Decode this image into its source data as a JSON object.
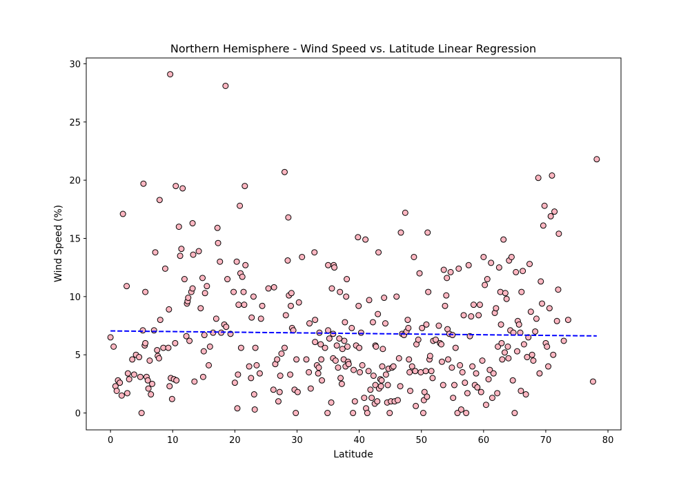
{
  "chart_data": {
    "type": "scatter",
    "title": "Northern Hemisphere - Wind Speed vs. Latitude Linear Regression",
    "xlabel": "Latitude",
    "ylabel": "Wind Speed (%)",
    "xlim": [
      -3.9,
      82.1
    ],
    "ylim": [
      -1.45,
      30.5
    ],
    "xticks": [
      0,
      10,
      20,
      30,
      40,
      50,
      60,
      70,
      80
    ],
    "yticks": [
      0,
      5,
      10,
      15,
      20,
      25,
      30
    ],
    "grid": false,
    "marker_color": "#ffb6c1",
    "marker_edge": "#000000",
    "regression_color": "#0000ff",
    "regression": {
      "x": [
        0,
        78.2
      ],
      "y": [
        7.05,
        6.62
      ]
    },
    "points": [
      [
        0.0,
        6.5
      ],
      [
        0.5,
        5.7
      ],
      [
        0.8,
        2.3
      ],
      [
        1.0,
        1.9
      ],
      [
        1.2,
        2.8
      ],
      [
        1.5,
        2.6
      ],
      [
        1.8,
        1.5
      ],
      [
        2.0,
        17.1
      ],
      [
        2.6,
        10.9
      ],
      [
        2.7,
        1.7
      ],
      [
        2.8,
        3.4
      ],
      [
        3.0,
        2.9
      ],
      [
        3.5,
        4.6
      ],
      [
        3.8,
        3.3
      ],
      [
        4.1,
        5.0
      ],
      [
        4.6,
        4.8
      ],
      [
        4.8,
        3.1
      ],
      [
        5.0,
        0.0
      ],
      [
        5.2,
        7.1
      ],
      [
        5.3,
        19.7
      ],
      [
        5.5,
        5.8
      ],
      [
        5.6,
        6.0
      ],
      [
        5.6,
        10.4
      ],
      [
        5.8,
        3.1
      ],
      [
        6.0,
        2.8
      ],
      [
        6.1,
        2.1
      ],
      [
        6.3,
        4.5
      ],
      [
        6.5,
        1.6
      ],
      [
        6.7,
        2.5
      ],
      [
        7.0,
        7.1
      ],
      [
        7.2,
        13.8
      ],
      [
        7.5,
        5.4
      ],
      [
        7.6,
        4.9
      ],
      [
        7.8,
        4.7
      ],
      [
        7.9,
        18.3
      ],
      [
        8.0,
        8.0
      ],
      [
        8.5,
        5.6
      ],
      [
        8.8,
        12.4
      ],
      [
        9.3,
        5.6
      ],
      [
        9.4,
        8.9
      ],
      [
        9.5,
        2.3
      ],
      [
        9.6,
        29.1
      ],
      [
        9.7,
        3.0
      ],
      [
        9.9,
        1.2
      ],
      [
        10.2,
        2.9
      ],
      [
        10.4,
        6.0
      ],
      [
        10.5,
        19.5
      ],
      [
        10.6,
        2.8
      ],
      [
        11.0,
        16.0
      ],
      [
        11.2,
        13.5
      ],
      [
        11.4,
        14.1
      ],
      [
        11.6,
        19.3
      ],
      [
        11.9,
        11.5
      ],
      [
        12.2,
        6.6
      ],
      [
        12.3,
        9.4
      ],
      [
        12.4,
        9.6
      ],
      [
        12.5,
        9.9
      ],
      [
        12.7,
        6.2
      ],
      [
        13.0,
        10.4
      ],
      [
        13.2,
        10.7
      ],
      [
        13.2,
        16.3
      ],
      [
        13.3,
        13.6
      ],
      [
        13.5,
        2.7
      ],
      [
        14.2,
        13.9
      ],
      [
        14.5,
        9.0
      ],
      [
        14.8,
        11.6
      ],
      [
        14.9,
        3.1
      ],
      [
        15.0,
        5.3
      ],
      [
        15.1,
        6.7
      ],
      [
        15.2,
        10.3
      ],
      [
        15.5,
        10.9
      ],
      [
        15.8,
        4.1
      ],
      [
        16.0,
        5.7
      ],
      [
        16.5,
        6.9
      ],
      [
        17.0,
        8.1
      ],
      [
        17.2,
        15.9
      ],
      [
        17.3,
        14.6
      ],
      [
        17.6,
        13.0
      ],
      [
        17.8,
        6.9
      ],
      [
        18.3,
        7.6
      ],
      [
        18.5,
        28.1
      ],
      [
        18.6,
        7.4
      ],
      [
        18.8,
        11.5
      ],
      [
        19.3,
        6.8
      ],
      [
        19.8,
        10.4
      ],
      [
        20.0,
        2.6
      ],
      [
        20.3,
        13.0
      ],
      [
        20.4,
        0.4
      ],
      [
        20.5,
        3.3
      ],
      [
        20.6,
        9.3
      ],
      [
        20.8,
        17.8
      ],
      [
        20.9,
        12.0
      ],
      [
        21.0,
        5.6
      ],
      [
        21.2,
        11.7
      ],
      [
        21.4,
        10.4
      ],
      [
        21.5,
        9.3
      ],
      [
        21.6,
        19.5
      ],
      [
        21.7,
        12.7
      ],
      [
        22.3,
        4.0
      ],
      [
        22.6,
        3.0
      ],
      [
        22.7,
        8.2
      ],
      [
        23.0,
        10.0
      ],
      [
        23.1,
        1.6
      ],
      [
        23.2,
        0.3
      ],
      [
        23.3,
        5.6
      ],
      [
        23.5,
        4.1
      ],
      [
        24.0,
        3.4
      ],
      [
        24.2,
        8.1
      ],
      [
        24.4,
        9.2
      ],
      [
        25.4,
        10.7
      ],
      [
        26.2,
        2.0
      ],
      [
        26.3,
        10.8
      ],
      [
        26.5,
        4.2
      ],
      [
        26.8,
        4.6
      ],
      [
        27.0,
        1.0
      ],
      [
        27.2,
        1.8
      ],
      [
        27.3,
        3.2
      ],
      [
        27.5,
        5.1
      ],
      [
        28.0,
        5.6
      ],
      [
        28.2,
        8.4
      ],
      [
        28.0,
        20.7
      ],
      [
        28.5,
        13.1
      ],
      [
        28.6,
        16.8
      ],
      [
        28.7,
        10.1
      ],
      [
        28.9,
        3.3
      ],
      [
        29.0,
        9.2
      ],
      [
        29.1,
        10.3
      ],
      [
        29.2,
        7.3
      ],
      [
        29.4,
        7.1
      ],
      [
        29.6,
        2.0
      ],
      [
        29.8,
        0.0
      ],
      [
        29.9,
        4.6
      ],
      [
        30.1,
        1.8
      ],
      [
        30.3,
        9.5
      ],
      [
        30.8,
        13.4
      ],
      [
        31.5,
        4.6
      ],
      [
        31.9,
        3.5
      ],
      [
        32.2,
        2.1
      ],
      [
        32.0,
        7.7
      ],
      [
        32.9,
        6.1
      ],
      [
        32.8,
        13.8
      ],
      [
        32.9,
        8.0
      ],
      [
        33.2,
        4.1
      ],
      [
        33.4,
        3.4
      ],
      [
        33.5,
        3.9
      ],
      [
        33.6,
        6.9
      ],
      [
        33.8,
        5.9
      ],
      [
        33.9,
        4.6
      ],
      [
        34.0,
        2.8
      ],
      [
        34.5,
        5.6
      ],
      [
        34.9,
        0.0
      ],
      [
        35.0,
        7.1
      ],
      [
        35.0,
        12.7
      ],
      [
        35.2,
        6.4
      ],
      [
        35.5,
        0.9
      ],
      [
        35.6,
        10.7
      ],
      [
        35.8,
        6.8
      ],
      [
        35.8,
        4.7
      ],
      [
        35.9,
        12.7
      ],
      [
        36.0,
        12.5
      ],
      [
        36.2,
        4.5
      ],
      [
        36.4,
        5.8
      ],
      [
        36.6,
        3.9
      ],
      [
        36.8,
        6.4
      ],
      [
        36.9,
        10.4
      ],
      [
        37.0,
        3.0
      ],
      [
        37.2,
        2.5
      ],
      [
        37.3,
        5.5
      ],
      [
        37.5,
        4.6
      ],
      [
        37.6,
        6.2
      ],
      [
        37.7,
        7.8
      ],
      [
        37.8,
        4.0
      ],
      [
        37.9,
        10.0
      ],
      [
        38.0,
        11.5
      ],
      [
        38.1,
        5.7
      ],
      [
        38.2,
        4.4
      ],
      [
        38.3,
        4.2
      ],
      [
        38.8,
        7.3
      ],
      [
        39.0,
        0.0
      ],
      [
        39.1,
        3.7
      ],
      [
        39.3,
        1.0
      ],
      [
        39.5,
        5.8
      ],
      [
        39.8,
        15.1
      ],
      [
        39.9,
        9.2
      ],
      [
        40.0,
        5.6
      ],
      [
        40.1,
        3.5
      ],
      [
        40.3,
        6.9
      ],
      [
        40.5,
        4.1
      ],
      [
        40.8,
        1.3
      ],
      [
        41.0,
        14.9
      ],
      [
        41.1,
        0.4
      ],
      [
        41.3,
        0.0
      ],
      [
        41.5,
        3.6
      ],
      [
        41.6,
        9.7
      ],
      [
        41.8,
        2.0
      ],
      [
        42.0,
        1.3
      ],
      [
        42.2,
        7.8
      ],
      [
        42.3,
        3.2
      ],
      [
        42.5,
        0.8
      ],
      [
        42.6,
        2.4
      ],
      [
        42.6,
        5.8
      ],
      [
        42.7,
        5.7
      ],
      [
        42.9,
        1.0
      ],
      [
        43.0,
        8.5
      ],
      [
        43.1,
        13.8
      ],
      [
        43.2,
        2.1
      ],
      [
        43.4,
        2.9
      ],
      [
        43.5,
        2.3
      ],
      [
        43.6,
        2.8
      ],
      [
        43.7,
        4.0
      ],
      [
        43.8,
        5.5
      ],
      [
        44.0,
        9.9
      ],
      [
        44.2,
        7.7
      ],
      [
        44.3,
        3.3
      ],
      [
        44.5,
        0.9
      ],
      [
        44.6,
        2.4
      ],
      [
        44.7,
        3.8
      ],
      [
        44.9,
        0.0
      ],
      [
        45.1,
        1.0
      ],
      [
        45.3,
        3.9
      ],
      [
        45.5,
        4.0
      ],
      [
        45.7,
        1.0
      ],
      [
        46.0,
        10.0
      ],
      [
        46.2,
        1.1
      ],
      [
        46.4,
        4.7
      ],
      [
        46.6,
        2.3
      ],
      [
        46.7,
        15.5
      ],
      [
        46.9,
        6.8
      ],
      [
        47.2,
        6.7
      ],
      [
        47.4,
        17.2
      ],
      [
        47.6,
        7.0
      ],
      [
        47.8,
        8.0
      ],
      [
        47.9,
        7.3
      ],
      [
        48.0,
        4.6
      ],
      [
        48.1,
        3.5
      ],
      [
        48.2,
        1.9
      ],
      [
        48.5,
        4.0
      ],
      [
        48.8,
        13.4
      ],
      [
        49.0,
        3.6
      ],
      [
        49.1,
        0.6
      ],
      [
        49.2,
        5.9
      ],
      [
        49.5,
        6.3
      ],
      [
        49.7,
        12.0
      ],
      [
        49.9,
        3.5
      ],
      [
        50.1,
        7.3
      ],
      [
        50.3,
        0.0
      ],
      [
        50.4,
        1.1
      ],
      [
        50.5,
        1.8
      ],
      [
        50.7,
        3.6
      ],
      [
        50.8,
        7.6
      ],
      [
        50.9,
        1.4
      ],
      [
        51.0,
        15.5
      ],
      [
        51.1,
        10.4
      ],
      [
        51.3,
        4.6
      ],
      [
        51.4,
        4.9
      ],
      [
        51.6,
        3.6
      ],
      [
        51.8,
        3.0
      ],
      [
        51.9,
        6.2
      ],
      [
        52.3,
        6.3
      ],
      [
        52.8,
        7.5
      ],
      [
        53.0,
        6.0
      ],
      [
        53.2,
        5.9
      ],
      [
        53.3,
        4.4
      ],
      [
        53.5,
        2.4
      ],
      [
        53.6,
        12.3
      ],
      [
        53.8,
        9.2
      ],
      [
        54.0,
        10.1
      ],
      [
        54.1,
        11.6
      ],
      [
        54.2,
        7.2
      ],
      [
        54.3,
        4.6
      ],
      [
        54.5,
        6.8
      ],
      [
        54.7,
        12.1
      ],
      [
        54.9,
        3.9
      ],
      [
        55.0,
        6.7
      ],
      [
        55.1,
        1.3
      ],
      [
        55.3,
        2.4
      ],
      [
        55.5,
        5.6
      ],
      [
        55.8,
        0.0
      ],
      [
        56.0,
        12.4
      ],
      [
        56.2,
        4.1
      ],
      [
        56.4,
        0.3
      ],
      [
        56.6,
        3.5
      ],
      [
        56.8,
        8.4
      ],
      [
        57.0,
        2.6
      ],
      [
        57.2,
        0.0
      ],
      [
        57.4,
        1.7
      ],
      [
        57.6,
        12.7
      ],
      [
        57.8,
        6.6
      ],
      [
        58.0,
        8.3
      ],
      [
        58.2,
        4.0
      ],
      [
        58.4,
        9.3
      ],
      [
        58.6,
        2.4
      ],
      [
        58.8,
        3.4
      ],
      [
        59.0,
        2.2
      ],
      [
        59.2,
        8.4
      ],
      [
        59.4,
        9.3
      ],
      [
        59.6,
        1.8
      ],
      [
        59.8,
        4.5
      ],
      [
        60.0,
        13.4
      ],
      [
        60.2,
        11.0
      ],
      [
        60.4,
        0.7
      ],
      [
        60.6,
        11.5
      ],
      [
        60.8,
        2.9
      ],
      [
        61.0,
        3.7
      ],
      [
        61.2,
        12.9
      ],
      [
        61.4,
        1.3
      ],
      [
        61.6,
        3.4
      ],
      [
        61.8,
        8.6
      ],
      [
        62.0,
        9.0
      ],
      [
        62.2,
        1.7
      ],
      [
        62.3,
        5.7
      ],
      [
        62.5,
        12.5
      ],
      [
        62.7,
        10.4
      ],
      [
        62.8,
        7.6
      ],
      [
        62.9,
        6.0
      ],
      [
        63.0,
        4.6
      ],
      [
        63.2,
        14.9
      ],
      [
        63.4,
        5.2
      ],
      [
        63.5,
        10.3
      ],
      [
        63.7,
        9.8
      ],
      [
        63.9,
        5.7
      ],
      [
        64.0,
        4.7
      ],
      [
        64.1,
        13.1
      ],
      [
        64.3,
        7.1
      ],
      [
        64.5,
        13.4
      ],
      [
        64.7,
        2.8
      ],
      [
        64.8,
        6.9
      ],
      [
        65.0,
        0.0
      ],
      [
        65.2,
        12.1
      ],
      [
        65.4,
        5.3
      ],
      [
        65.5,
        7.9
      ],
      [
        65.7,
        7.6
      ],
      [
        65.9,
        6.9
      ],
      [
        66.0,
        1.9
      ],
      [
        66.1,
        10.4
      ],
      [
        66.3,
        12.2
      ],
      [
        66.5,
        5.9
      ],
      [
        66.8,
        1.6
      ],
      [
        67.0,
        4.8
      ],
      [
        67.2,
        6.5
      ],
      [
        67.4,
        12.8
      ],
      [
        67.6,
        8.7
      ],
      [
        67.8,
        5.0
      ],
      [
        68.0,
        4.5
      ],
      [
        68.3,
        7.0
      ],
      [
        68.5,
        8.1
      ],
      [
        68.8,
        20.2
      ],
      [
        69.0,
        3.4
      ],
      [
        69.2,
        11.3
      ],
      [
        69.4,
        9.4
      ],
      [
        69.6,
        16.1
      ],
      [
        69.8,
        17.8
      ],
      [
        70.0,
        6.0
      ],
      [
        70.2,
        5.7
      ],
      [
        70.4,
        4.0
      ],
      [
        70.6,
        9.0
      ],
      [
        70.8,
        16.9
      ],
      [
        71.0,
        20.4
      ],
      [
        71.2,
        5.0
      ],
      [
        71.4,
        17.3
      ],
      [
        71.8,
        7.9
      ],
      [
        72.0,
        10.6
      ],
      [
        72.1,
        15.4
      ],
      [
        72.9,
        6.2
      ],
      [
        73.6,
        8.0
      ],
      [
        77.6,
        2.7
      ],
      [
        78.2,
        21.8
      ]
    ]
  }
}
